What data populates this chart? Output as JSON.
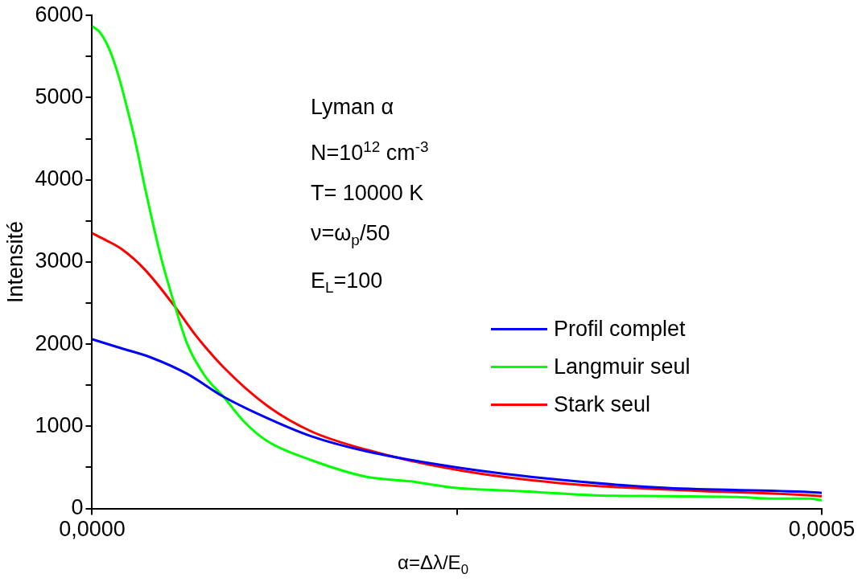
{
  "chart_data": {
    "type": "line",
    "xlabel": "α=Δλ/E$_{0}$",
    "ylabel": "Intensité",
    "xlim": [
      0,
      0.0005
    ],
    "ylim": [
      0,
      6000
    ],
    "xticks": [
      {
        "value": 0,
        "label": "0,0000"
      },
      {
        "value": 0.00025,
        "label": null
      },
      {
        "value": 0.0005,
        "label": "0,0005"
      }
    ],
    "yticks": [
      0,
      {
        "value": 500,
        "label": null
      },
      1000,
      {
        "value": 1500,
        "label": null
      },
      2000,
      {
        "value": 2500,
        "label": null
      },
      3000,
      {
        "value": 3500,
        "label": null
      },
      4000,
      {
        "value": 4500,
        "label": null
      },
      5000,
      {
        "value": 5500,
        "label": null
      },
      6000
    ],
    "grid": false,
    "legend": "right",
    "marker": "none",
    "line_style": "solid",
    "annotations": [
      "Lyman α",
      "N=10$^{12}$ cm$^{-3}$",
      "T= 10000 K",
      "ν=ω$_{p}$/50",
      "E$_{L}$=100"
    ],
    "series": [
      {
        "name": "Profil complet",
        "color": "#0000ff",
        "x": [
          0,
          2e-05,
          4e-05,
          6.5e-05,
          9e-05,
          0.00012,
          0.00015,
          0.000187,
          0.00025,
          0.00032,
          0.000394,
          0.000492,
          0.0005
        ],
        "values": [
          2060,
          1950,
          1840,
          1640,
          1360,
          1100,
          880,
          700,
          500,
          350,
          250,
          200,
          190
        ]
      },
      {
        "name": "Langmuir seul",
        "color": "#00ff00",
        "x": [
          0,
          5.5e-06,
          1.2e-05,
          1.8e-05,
          2.4e-05,
          3e-05,
          3.6e-05,
          4.2e-05,
          4.8e-05,
          5.7e-05,
          6.5e-05,
          7.7e-05,
          9e-05,
          0.000104,
          0.00012,
          0.00015,
          0.000187,
          0.000218,
          0.00025,
          0.000296,
          0.000345,
          0.000394,
          0.000442,
          0.000467,
          0.000492,
          0.0005
        ],
        "values": [
          5870,
          5790,
          5580,
          5270,
          4870,
          4430,
          3920,
          3440,
          3000,
          2450,
          2010,
          1620,
          1360,
          1060,
          820,
          590,
          390,
          330,
          250,
          210,
          160,
          150,
          140,
          120,
          120,
          100
        ]
      },
      {
        "name": "Stark seul",
        "color": "#ff0000",
        "x": [
          0,
          1e-05,
          2e-05,
          3.6e-05,
          5.7e-05,
          7e-05,
          9e-05,
          0.00012,
          0.00015,
          0.000187,
          0.00025,
          0.00032,
          0.000394,
          0.000492,
          0.0005
        ],
        "values": [
          3350,
          3260,
          3160,
          2910,
          2450,
          2130,
          1720,
          1250,
          940,
          720,
          470,
          310,
          230,
          160,
          150
        ]
      }
    ]
  }
}
